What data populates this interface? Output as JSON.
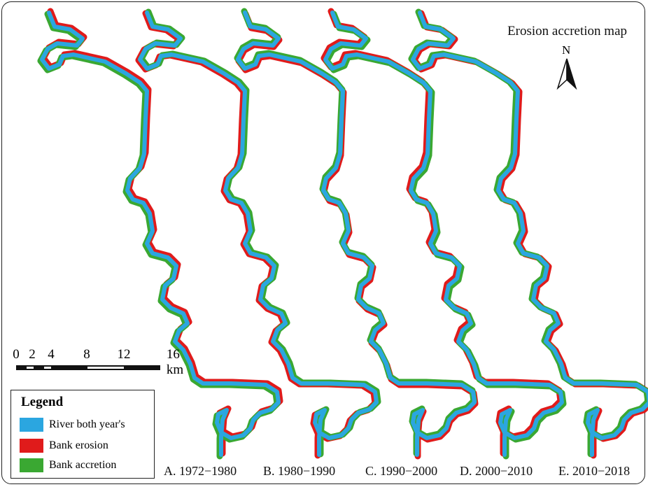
{
  "map": {
    "title": "Erosion accretion map",
    "north_label": "N",
    "colors": {
      "river": "#2ba6e0",
      "erosion": "#e01b1b",
      "accretion": "#3aa832",
      "frame": "#222222"
    },
    "scale": {
      "ticks": [
        "0",
        "2",
        "4",
        "8",
        "12",
        "16 km"
      ]
    },
    "legend": {
      "title": "Legend",
      "items": [
        {
          "label": "River both year's",
          "color": "#2ba6e0"
        },
        {
          "label": "Bank erosion",
          "color": "#e01b1b"
        },
        {
          "label": "Bank accretion",
          "color": "#3aa832"
        }
      ]
    },
    "panels": [
      {
        "label": "A. 1972−1980"
      },
      {
        "label": "B. 1980−1990"
      },
      {
        "label": "C. 1990−2000"
      },
      {
        "label": "D. 2000−2010"
      },
      {
        "label": "E. 2010−2018"
      }
    ]
  }
}
